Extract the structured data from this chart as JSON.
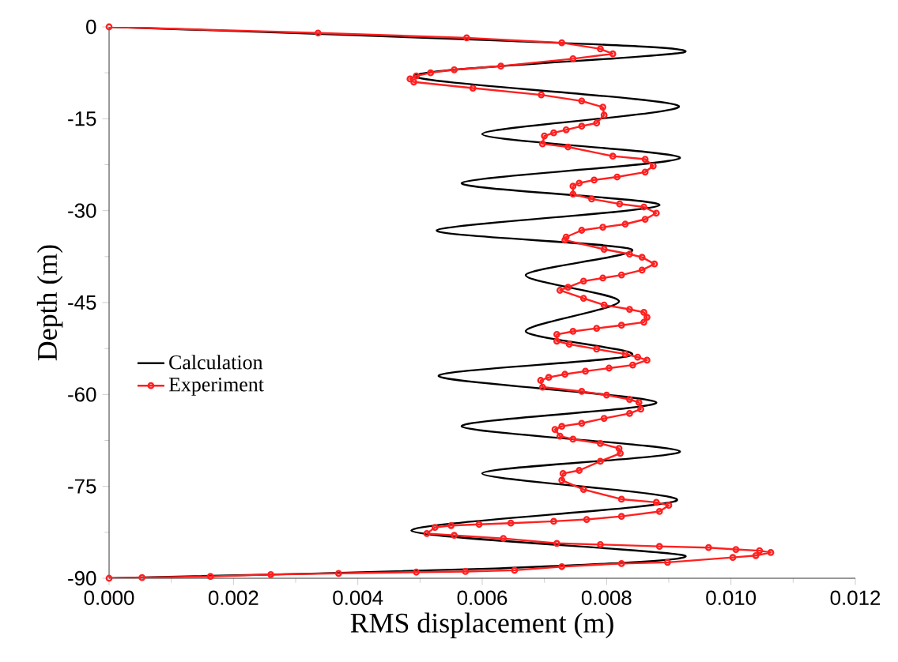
{
  "chart_data": {
    "type": "line",
    "xlabel": "RMS displacement  (m)",
    "ylabel": "Depth  (m)",
    "xlim": [
      0,
      0.012
    ],
    "ylim": [
      -90,
      0
    ],
    "xticks": [
      {
        "value": 0,
        "label": "0.000"
      },
      {
        "value": 0.002,
        "label": "0.002"
      },
      {
        "value": 0.004,
        "label": "0.004"
      },
      {
        "value": 0.006,
        "label": "0.006"
      },
      {
        "value": 0.008,
        "label": "0.008"
      },
      {
        "value": 0.01,
        "label": "0.010"
      },
      {
        "value": 0.012,
        "label": "0.012"
      }
    ],
    "yticks": [
      0,
      -15,
      -30,
      -45,
      -60,
      -75,
      -90
    ],
    "legend": "left",
    "series": [
      {
        "name": "Calculation",
        "color": "#000000",
        "marker": "none",
        "line_style": "solid",
        "x": [
          0,
          0.0062,
          0.00926,
          0.0049,
          0.00916,
          0.006,
          0.00918,
          0.00567,
          0.00885,
          0.00527,
          0.0084,
          0.0067,
          0.0082,
          0.0067,
          0.0084,
          0.0053,
          0.0088,
          0.00567,
          0.00918,
          0.006,
          0.00913,
          0.00486,
          0.00926,
          0.0062,
          0
        ],
        "values": [
          0,
          -2.2,
          -4.1,
          -8,
          -12.9,
          -17.5,
          -21.4,
          -25.5,
          -29.1,
          -33.2,
          -36.3,
          -40.5,
          -44.8,
          -49.7,
          -53.6,
          -57,
          -61.3,
          -65.2,
          -69.3,
          -72.9,
          -77.3,
          -82.2,
          -86.3,
          -88.4,
          -90
        ]
      },
      {
        "name": "Experiment",
        "color": "#ff2020",
        "marker": "circle",
        "line_style": "solid",
        "x": [
          0,
          0.00336,
          0.00575,
          0.00728,
          0.0079,
          0.0081,
          0.00746,
          0.0063,
          0.00555,
          0.00517,
          0.00494,
          0.00484,
          0.0049,
          0.00585,
          0.00695,
          0.0076,
          0.00794,
          0.00796,
          0.00784,
          0.0076,
          0.00735,
          0.00715,
          0.007,
          0.00697,
          0.00738,
          0.0081,
          0.00862,
          0.00875,
          0.00862,
          0.00817,
          0.0078,
          0.00756,
          0.00746,
          0.00746,
          0.00776,
          0.00821,
          0.0086,
          0.0088,
          0.00862,
          0.0083,
          0.00794,
          0.0076,
          0.00735,
          0.00733,
          0.00796,
          0.00837,
          0.00857,
          0.00877,
          0.00857,
          0.00824,
          0.00794,
          0.00763,
          0.00738,
          0.00725,
          0.00763,
          0.00796,
          0.00837,
          0.0086,
          0.00865,
          0.0086,
          0.00824,
          0.00784,
          0.00746,
          0.0072,
          0.0072,
          0.0074,
          0.00784,
          0.0083,
          0.0085,
          0.00865,
          0.00842,
          0.00804,
          0.00766,
          0.00733,
          0.00707,
          0.00694,
          0.00697,
          0.0076,
          0.008,
          0.00837,
          0.00852,
          0.00855,
          0.00837,
          0.00796,
          0.0076,
          0.00728,
          0.00717,
          0.00725,
          0.00746,
          0.0079,
          0.0082,
          0.00822,
          0.0079,
          0.00756,
          0.0073,
          0.00728,
          0.00763,
          0.00824,
          0.0088,
          0.009,
          0.00885,
          0.00824,
          0.00768,
          0.00715,
          0.00646,
          0.00595,
          0.0055,
          0.00524,
          0.00511,
          0.00555,
          0.00634,
          0.0072,
          0.0079,
          0.00885,
          0.00964,
          0.01008,
          0.01046,
          0.01064,
          0.0104,
          0.01003,
          0.00898,
          0.00824,
          0.00728,
          0.00652,
          0.00573,
          0.00494,
          0.00369,
          0.0026,
          0.00163,
          0.00053,
          0
        ],
        "values": [
          0,
          -1.0,
          -1.8,
          -2.6,
          -3.6,
          -4.4,
          -5.2,
          -6.4,
          -7.0,
          -7.5,
          -8.0,
          -8.5,
          -9.0,
          -10.0,
          -11.1,
          -12.1,
          -13.1,
          -14.4,
          -15.7,
          -16.2,
          -16.8,
          -17.3,
          -17.8,
          -19.1,
          -19.6,
          -21.1,
          -21.6,
          -22.7,
          -23.7,
          -24.5,
          -25.0,
          -25.5,
          -26.0,
          -27.3,
          -28.1,
          -28.9,
          -29.4,
          -30.4,
          -31.4,
          -32.2,
          -32.7,
          -33.2,
          -34.3,
          -34.8,
          -36.3,
          -37.1,
          -37.6,
          -38.7,
          -39.7,
          -40.5,
          -41.0,
          -41.5,
          -42.5,
          -43.0,
          -44.3,
          -45.4,
          -46.1,
          -46.6,
          -47.4,
          -48.2,
          -48.7,
          -49.2,
          -49.7,
          -50.2,
          -51.3,
          -51.8,
          -52.6,
          -53.4,
          -53.9,
          -54.4,
          -55.2,
          -55.7,
          -56.2,
          -56.7,
          -57.2,
          -57.7,
          -58.8,
          -59.5,
          -60.1,
          -60.8,
          -61.3,
          -62.4,
          -63.1,
          -63.9,
          -64.7,
          -65.2,
          -65.7,
          -66.8,
          -67.3,
          -68.0,
          -68.8,
          -69.6,
          -70.9,
          -72.4,
          -72.9,
          -74.0,
          -75.5,
          -77.1,
          -77.6,
          -78.1,
          -79.1,
          -79.9,
          -80.4,
          -80.7,
          -81.0,
          -81.2,
          -81.4,
          -81.7,
          -82.7,
          -83.0,
          -83.5,
          -84.3,
          -84.5,
          -84.8,
          -85.0,
          -85.3,
          -85.5,
          -85.8,
          -86.3,
          -86.6,
          -87.4,
          -87.6,
          -88.1,
          -88.7,
          -88.9,
          -89.0,
          -89.2,
          -89.4,
          -89.7,
          -89.9,
          -90
        ]
      }
    ]
  }
}
